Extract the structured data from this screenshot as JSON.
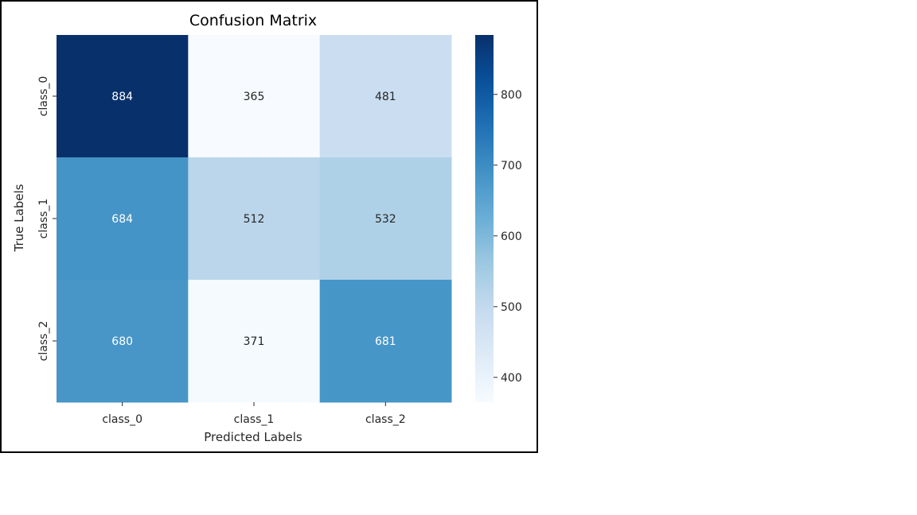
{
  "chart_data": {
    "type": "heatmap",
    "title": "Confusion Matrix",
    "xlabel": "Predicted Labels",
    "ylabel": "True Labels",
    "x_categories": [
      "class_0",
      "class_1",
      "class_2"
    ],
    "y_categories": [
      "class_0",
      "class_1",
      "class_2"
    ],
    "values": [
      [
        884,
        365,
        481
      ],
      [
        684,
        512,
        532
      ],
      [
        680,
        371,
        681
      ]
    ],
    "colormap": "Blues",
    "colorbar": {
      "range": [
        365,
        884
      ],
      "ticks": [
        400,
        500,
        600,
        700,
        800
      ],
      "tick_labels": [
        "400",
        "500",
        "600",
        "700",
        "800"
      ]
    },
    "colors": {
      "low": "#f7fbff",
      "high": "#08306b",
      "annotation_dark": "#262626",
      "annotation_light": "#ffffff"
    }
  }
}
